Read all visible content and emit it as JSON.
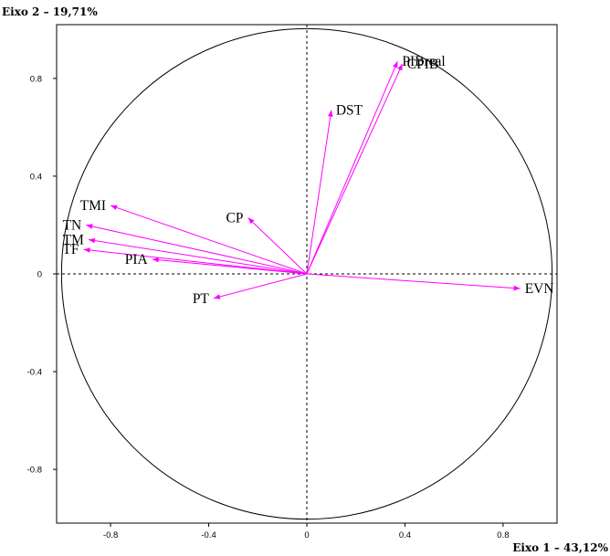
{
  "chart_data": {
    "type": "scatter",
    "subtype": "correlation-circle",
    "xlabel": "Eixo 1 – 43,12%",
    "ylabel": "Eixo 2 – 19,71%",
    "xlim": [
      -1.02,
      1.02
    ],
    "ylim": [
      -1.02,
      1.02
    ],
    "x_ticks": [
      {
        "value": -0.8,
        "label": "-0.8"
      },
      {
        "value": -0.4,
        "label": "-0.4"
      },
      {
        "value": 0,
        "label": "0"
      },
      {
        "value": 0.4,
        "label": "0.4"
      },
      {
        "value": 0.8,
        "label": "0.8"
      }
    ],
    "y_ticks": [
      {
        "value": 0.8,
        "label": "0.8"
      },
      {
        "value": 0.4,
        "label": "0.4"
      },
      {
        "value": 0,
        "label": "0"
      },
      {
        "value": -0.4,
        "label": "-0.4"
      },
      {
        "value": -0.8,
        "label": "-0.8"
      }
    ],
    "vector_color": "#ff00ff",
    "circle_radius": 1,
    "vectors": [
      {
        "name": "PIBreal",
        "x": 0.37,
        "y": 0.87,
        "anchor": "start"
      },
      {
        "name": "CPIB",
        "x": 0.39,
        "y": 0.86,
        "anchor": "start"
      },
      {
        "name": "DST",
        "x": 0.1,
        "y": 0.67,
        "anchor": "start"
      },
      {
        "name": "CP",
        "x": -0.24,
        "y": 0.23,
        "anchor": "end"
      },
      {
        "name": "TMI",
        "x": -0.8,
        "y": 0.28,
        "anchor": "end"
      },
      {
        "name": "TN",
        "x": -0.9,
        "y": 0.2,
        "anchor": "end"
      },
      {
        "name": "TM",
        "x": -0.89,
        "y": 0.14,
        "anchor": "end"
      },
      {
        "name": "TF",
        "x": -0.91,
        "y": 0.1,
        "anchor": "end"
      },
      {
        "name": "PIA",
        "x": -0.63,
        "y": 0.06,
        "anchor": "end"
      },
      {
        "name": "PT",
        "x": -0.38,
        "y": -0.1,
        "anchor": "end"
      },
      {
        "name": "EVN",
        "x": 0.87,
        "y": -0.06,
        "anchor": "start"
      }
    ]
  }
}
